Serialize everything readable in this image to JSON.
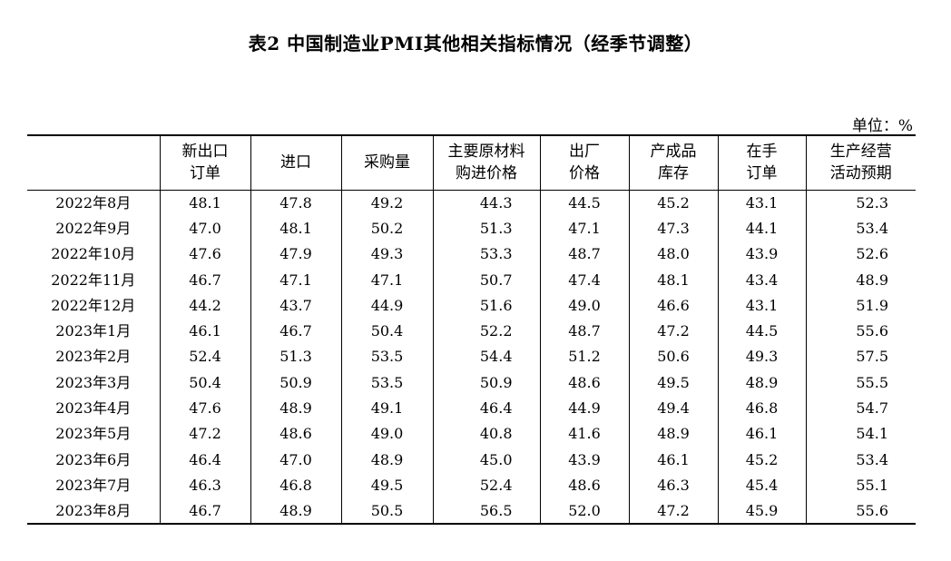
{
  "title": "表2 中国制造业PMI其他相关指标情况（经季节调整）",
  "unit": "单位：%",
  "headers": [
    [
      "",
      ""
    ],
    [
      "新出口",
      "订单"
    ],
    [
      "进口",
      ""
    ],
    [
      "采购量",
      ""
    ],
    [
      "主要原材料",
      "购进价格"
    ],
    [
      "出厂",
      "价格"
    ],
    [
      "产成品",
      "库存"
    ],
    [
      "在手",
      "订单"
    ],
    [
      "生产经营",
      "活动预期"
    ]
  ],
  "rows": [
    [
      "2022年8月",
      "48.1",
      "47.8",
      "49.2",
      "44.3",
      "44.5",
      "45.2",
      "43.1",
      "52.3"
    ],
    [
      "2022年9月",
      "47.0",
      "48.1",
      "50.2",
      "51.3",
      "47.1",
      "47.3",
      "44.1",
      "53.4"
    ],
    [
      "2022年10月",
      "47.6",
      "47.9",
      "49.3",
      "53.3",
      "48.7",
      "48.0",
      "43.9",
      "52.6"
    ],
    [
      "2022年11月",
      "46.7",
      "47.1",
      "47.1",
      "50.7",
      "47.4",
      "48.1",
      "43.4",
      "48.9"
    ],
    [
      "2022年12月",
      "44.2",
      "43.7",
      "44.9",
      "51.6",
      "49.0",
      "46.6",
      "43.1",
      "51.9"
    ],
    [
      "2023年1月",
      "46.1",
      "46.7",
      "50.4",
      "52.2",
      "48.7",
      "47.2",
      "44.5",
      "55.6"
    ],
    [
      "2023年2月",
      "52.4",
      "51.3",
      "53.5",
      "54.4",
      "51.2",
      "50.6",
      "49.3",
      "57.5"
    ],
    [
      "2023年3月",
      "50.4",
      "50.9",
      "53.5",
      "50.9",
      "48.6",
      "49.5",
      "48.9",
      "55.5"
    ],
    [
      "2023年4月",
      "47.6",
      "48.9",
      "49.1",
      "46.4",
      "44.9",
      "49.4",
      "46.8",
      "54.7"
    ],
    [
      "2023年5月",
      "47.2",
      "48.6",
      "49.0",
      "40.8",
      "41.6",
      "48.9",
      "46.1",
      "54.1"
    ],
    [
      "2023年6月",
      "46.4",
      "47.0",
      "48.9",
      "45.0",
      "43.9",
      "46.1",
      "45.2",
      "53.4"
    ],
    [
      "2023年7月",
      "46.3",
      "46.8",
      "49.5",
      "52.4",
      "48.6",
      "46.3",
      "45.4",
      "55.1"
    ],
    [
      "2023年8月",
      "46.7",
      "48.9",
      "50.5",
      "56.5",
      "52.0",
      "47.2",
      "45.9",
      "55.6"
    ]
  ]
}
